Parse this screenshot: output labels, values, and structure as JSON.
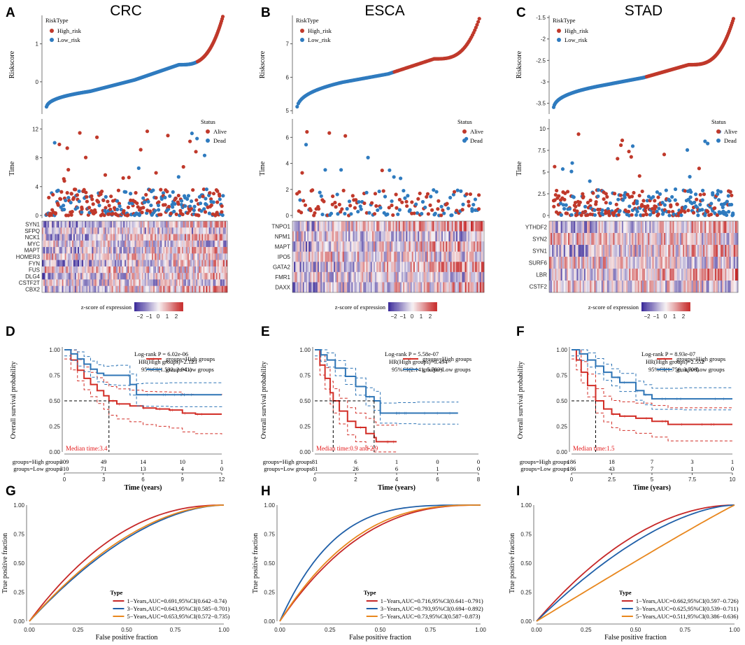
{
  "colors": {
    "high": "#c0392b",
    "low": "#2f7bbf",
    "alive": "#c0392b",
    "dead": "#2f7bbf",
    "km_high": "#d22e27",
    "km_low": "#2f75b6",
    "roc1": "#c62828",
    "roc3": "#1f5fa8",
    "roc5": "#e8871e",
    "heat_neg": "#3b2b9a",
    "heat_mid": "#f7f2f4",
    "heat_pos": "#c62828"
  },
  "panels": [
    {
      "letter": "A",
      "title": "CRC",
      "risk_chart": {
        "type": "line",
        "ylabel": "Riskscore",
        "legend_title": "RiskType",
        "legend": [
          "High_risk",
          "Low_risk"
        ],
        "y_ticks": [
          0,
          1
        ],
        "ylim": [
          -0.85,
          1.75
        ],
        "n": 619,
        "min": -0.75,
        "q1": -0.25,
        "median": 0.05,
        "q3": 0.45,
        "max": 1.75,
        "cut": 0.53
      },
      "status_chart": {
        "type": "scatter",
        "ylabel": "Time",
        "legend_title": "Status",
        "legend": [
          "Alive",
          "Dead"
        ],
        "y_ticks": [
          0,
          4,
          8,
          12
        ],
        "ylim": [
          0,
          13
        ]
      },
      "heatmap": {
        "genes": [
          "SYN1",
          "SFPQ",
          "NCK1",
          "MYC",
          "MAPT",
          "HOMER3",
          "FYN",
          "FUS",
          "DLG4",
          "CSTF2T",
          "CBX2"
        ],
        "scale_label": "z-score of expression",
        "scale_ticks": [
          "−2",
          "−1",
          "0",
          "1",
          "2"
        ]
      },
      "km": {
        "letter": "D",
        "type": "line",
        "logrank": "Log-rank P = 6.02e-06",
        "hr": "HR(High groups)=2.123",
        "ci": "95%CI(1.532, 2.941)",
        "legend": [
          "groups=High groups",
          "groups=Low groups"
        ],
        "median_text": "Median time:3.4",
        "ylabel": "Overall survival probability",
        "xlabel": "Time (years)",
        "x_ticks": [
          0,
          3,
          6,
          9,
          12
        ],
        "y_ticks": [
          "0.00",
          "0.25",
          "0.50",
          "0.75",
          "1.00"
        ],
        "xlim": [
          0,
          12
        ],
        "ylim": [
          0,
          1
        ],
        "high": [
          [
            0,
            1
          ],
          [
            0.5,
            0.9
          ],
          [
            1,
            0.8
          ],
          [
            1.5,
            0.72
          ],
          [
            2,
            0.66
          ],
          [
            2.5,
            0.6
          ],
          [
            3,
            0.55
          ],
          [
            3.4,
            0.5
          ],
          [
            4,
            0.47
          ],
          [
            5,
            0.45
          ],
          [
            6,
            0.43
          ],
          [
            7,
            0.42
          ],
          [
            8,
            0.41
          ],
          [
            9,
            0.38
          ],
          [
            10,
            0.37
          ],
          [
            12,
            0.37
          ]
        ],
        "low": [
          [
            0,
            1
          ],
          [
            0.5,
            0.96
          ],
          [
            1,
            0.91
          ],
          [
            1.5,
            0.86
          ],
          [
            2,
            0.81
          ],
          [
            2.5,
            0.77
          ],
          [
            3,
            0.75
          ],
          [
            3.5,
            0.75
          ],
          [
            4,
            0.75
          ],
          [
            5,
            0.66
          ],
          [
            5.5,
            0.56
          ],
          [
            6,
            0.56
          ],
          [
            8,
            0.56
          ],
          [
            12,
            0.56
          ]
        ],
        "median_x": 3.4,
        "risk_rows": [
          {
            "label": "groups=High groups",
            "values": [
              "309",
              "49",
              "14",
              "10",
              "1"
            ]
          },
          {
            "label": "groups=Low groups",
            "values": [
              "310",
              "71",
              "13",
              "4",
              "0"
            ]
          }
        ]
      },
      "roc": {
        "letter": "G",
        "type": "line",
        "ylabel": "True positive fraction",
        "xlabel": "False positive fraction",
        "x_ticks": [
          "0.00",
          "0.25",
          "0.50",
          "0.75",
          "1.00"
        ],
        "y_ticks": [
          "0.00",
          "0.25",
          "0.50",
          "0.75",
          "1.00"
        ],
        "legend_title": "Type",
        "series": [
          {
            "name": "1−Years,AUC=0.691,95%CI(0.642−0.74)",
            "auc": 0.691
          },
          {
            "name": "3−Years,AUC=0.643,95%CI(0.585−0.701)",
            "auc": 0.643
          },
          {
            "name": "5−Years,AUC=0.653,95%CI(0.572−0.735)",
            "auc": 0.653
          }
        ]
      }
    },
    {
      "letter": "B",
      "title": "ESCA",
      "risk_chart": {
        "type": "line",
        "ylabel": "Riskscore",
        "legend_title": "RiskType",
        "legend": [
          "High_risk",
          "Low_risk"
        ],
        "y_ticks": [
          5,
          6,
          7
        ],
        "ylim": [
          4.9,
          7.85
        ],
        "n": 162,
        "min": 4.92,
        "q1": 5.85,
        "median": 6.1,
        "q3": 6.55,
        "max": 7.8,
        "cut": 6.15
      },
      "status_chart": {
        "type": "scatter",
        "ylabel": "Time",
        "legend_title": "Status",
        "legend": [
          "Alive",
          "Dead"
        ],
        "y_ticks": [
          0,
          2,
          4,
          6
        ],
        "ylim": [
          0,
          7.2
        ]
      },
      "heatmap": {
        "genes": [
          "TNPO1",
          "NPM1",
          "MAPT",
          "IPO5",
          "GATA2",
          "FMR1",
          "DAXX"
        ],
        "scale_label": "z-score of expression",
        "scale_ticks": [
          "−2",
          "−1",
          "0",
          "1",
          "2"
        ]
      },
      "km": {
        "letter": "E",
        "type": "line",
        "logrank": "Log-rank P = 5.58e-07",
        "hr": "HR(High groups)=3.494",
        "ci": "95%CI(2.141, 5.703)",
        "legend": [
          "groups=High groups",
          "groups=Low groups"
        ],
        "median_text": "Median time:0.9 and 2.9",
        "ylabel": "Overall survival probability",
        "xlabel": "Time (years)",
        "x_ticks": [
          0,
          2,
          4,
          6,
          8
        ],
        "y_ticks": [
          "0.00",
          "0.25",
          "0.50",
          "0.75",
          "1.00"
        ],
        "xlim": [
          0,
          8
        ],
        "ylim": [
          0,
          1
        ],
        "high": [
          [
            0,
            1
          ],
          [
            0.25,
            0.85
          ],
          [
            0.5,
            0.72
          ],
          [
            0.75,
            0.58
          ],
          [
            0.9,
            0.5
          ],
          [
            1.2,
            0.4
          ],
          [
            1.6,
            0.3
          ],
          [
            2,
            0.24
          ],
          [
            2.5,
            0.18
          ],
          [
            2.9,
            0.14
          ],
          [
            3,
            0.1
          ],
          [
            4,
            0.1
          ]
        ],
        "low": [
          [
            0,
            1
          ],
          [
            0.3,
            0.95
          ],
          [
            0.6,
            0.9
          ],
          [
            1,
            0.82
          ],
          [
            1.5,
            0.74
          ],
          [
            2,
            0.64
          ],
          [
            2.5,
            0.54
          ],
          [
            2.9,
            0.5
          ],
          [
            3.2,
            0.38
          ],
          [
            4,
            0.38
          ],
          [
            5,
            0.38
          ],
          [
            7,
            0.38
          ]
        ],
        "median_x": 0.9,
        "median_x2": 2.9,
        "risk_rows": [
          {
            "label": "groups=High groups",
            "values": [
              "81",
              "6",
              "1",
              "0",
              "0"
            ]
          },
          {
            "label": "groups=Low groups",
            "values": [
              "81",
              "26",
              "6",
              "1",
              "0"
            ]
          }
        ]
      },
      "roc": {
        "letter": "H",
        "type": "line",
        "ylabel": "True positive fraction",
        "xlabel": "False positive fraction",
        "x_ticks": [
          "0.00",
          "0.25",
          "0.50",
          "0.75",
          "1.00"
        ],
        "y_ticks": [
          "0.00",
          "0.25",
          "0.50",
          "0.75",
          "1.00"
        ],
        "legend_title": "Type",
        "series": [
          {
            "name": "1−Years,AUC=0.716,95%CI(0.641−0.791)",
            "auc": 0.716
          },
          {
            "name": "3−Years,AUC=0.793,95%CI(0.694−0.892)",
            "auc": 0.793
          },
          {
            "name": "5−Years,AUC=0.73,95%CI(0.587−0.873)",
            "auc": 0.73
          }
        ]
      }
    },
    {
      "letter": "C",
      "title": "STAD",
      "risk_chart": {
        "type": "line",
        "ylabel": "Riskscore",
        "legend_title": "RiskType",
        "legend": [
          "High_risk",
          "Low_risk"
        ],
        "y_ticks": [
          -3.5,
          -3.0,
          -2.5,
          -2.0,
          -1.5
        ],
        "ylim": [
          -3.75,
          -1.45
        ],
        "n": 372,
        "min": -3.7,
        "q1": -3.1,
        "median": -2.9,
        "q3": -2.6,
        "max": -1.5,
        "cut": -2.88
      },
      "status_chart": {
        "type": "scatter",
        "ylabel": "Time",
        "legend_title": "Status",
        "legend": [
          "Alive",
          "Dead"
        ],
        "y_ticks": [
          0.0,
          2.5,
          5.0,
          7.5,
          10.0
        ],
        "ylim": [
          0,
          10.8
        ]
      },
      "heatmap": {
        "genes": [
          "YTHDF2",
          "SYN2",
          "SYN1",
          "SURF6",
          "LBR",
          "CSTF2"
        ],
        "scale_label": "z-score of expression",
        "scale_ticks": [
          "−2",
          "−1",
          "0",
          "1",
          "2"
        ]
      },
      "km": {
        "letter": "F",
        "type": "line",
        "logrank": "Log-rank P = 8.93e-07",
        "hr": "HR(High groups)=2.552",
        "ci": "95%CI(1.756, 3.708)",
        "legend": [
          "groups=High groups",
          "groups=Low groups"
        ],
        "median_text": "Median time:1.5",
        "ylabel": "Overall survival probability",
        "xlabel": "Time (years)",
        "x_ticks": [
          0.0,
          2.5,
          5.0,
          7.5,
          10.0
        ],
        "y_ticks": [
          "0.00",
          "0.25",
          "0.50",
          "0.75",
          "1.00"
        ],
        "xlim": [
          0,
          10
        ],
        "ylim": [
          0,
          1
        ],
        "high": [
          [
            0,
            1
          ],
          [
            0.3,
            0.9
          ],
          [
            0.6,
            0.78
          ],
          [
            1,
            0.65
          ],
          [
            1.5,
            0.5
          ],
          [
            2,
            0.42
          ],
          [
            2.5,
            0.37
          ],
          [
            3,
            0.35
          ],
          [
            4,
            0.33
          ],
          [
            5,
            0.3
          ],
          [
            6,
            0.27
          ],
          [
            10,
            0.27
          ]
        ],
        "low": [
          [
            0,
            1
          ],
          [
            0.5,
            0.96
          ],
          [
            1,
            0.9
          ],
          [
            1.5,
            0.84
          ],
          [
            2,
            0.78
          ],
          [
            2.5,
            0.73
          ],
          [
            3,
            0.68
          ],
          [
            4,
            0.6
          ],
          [
            4.5,
            0.56
          ],
          [
            5,
            0.52
          ],
          [
            7,
            0.52
          ],
          [
            10,
            0.52
          ]
        ],
        "median_x": 1.5,
        "risk_rows": [
          {
            "label": "groups=High groups",
            "values": [
              "186",
              "18",
              "7",
              "3",
              "1"
            ]
          },
          {
            "label": "groups=Low groups",
            "values": [
              "186",
              "43",
              "7",
              "1",
              "0"
            ]
          }
        ]
      },
      "roc": {
        "letter": "I",
        "type": "line",
        "ylabel": "True positive fraction",
        "xlabel": "False positive fraction",
        "x_ticks": [
          "0.00",
          "0.25",
          "0.50",
          "0.75",
          "1.00"
        ],
        "y_ticks": [
          "0.00",
          "0.25",
          "0.50",
          "0.75",
          "1.00"
        ],
        "legend_title": "Type",
        "series": [
          {
            "name": "1−Years,AUC=0.662,95%CI(0.597−0.726)",
            "auc": 0.662
          },
          {
            "name": "3−Years,AUC=0.625,95%CI(0.539−0.711)",
            "auc": 0.625
          },
          {
            "name": "5−Years,AUC=0.511,95%CI(0.386−0.636)",
            "auc": 0.511
          }
        ]
      }
    }
  ]
}
